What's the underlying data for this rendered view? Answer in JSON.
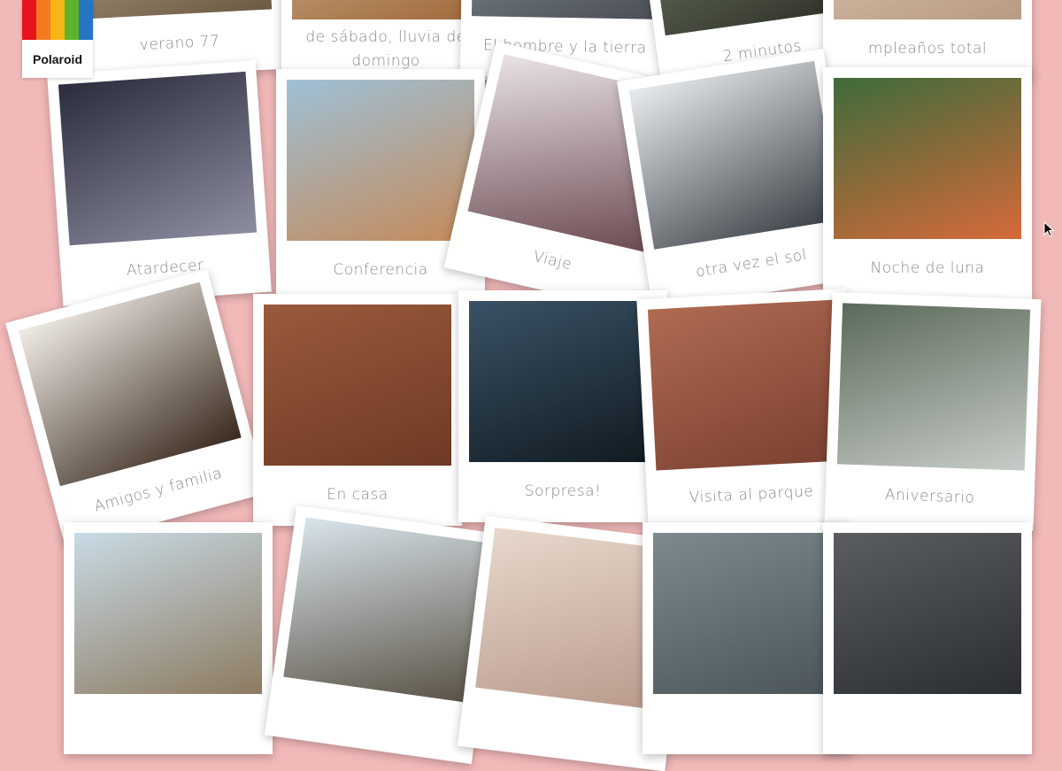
{
  "logo": {
    "label": "Polaroid"
  },
  "rows": [
    {
      "captions": [
        "verano 77",
        "de sábado, lluvia de domingo",
        "El hombre y la tierra",
        "2 minutos",
        "mpleaños total"
      ]
    },
    {
      "captions": [
        "Atardecer",
        "Conferencia",
        "Viaje",
        "otra vez el sol",
        "Noche de luna"
      ]
    },
    {
      "captions": [
        "Amigos y familia",
        "En casa",
        "Sorpresa!",
        "Visita al parque",
        "Aniversario"
      ]
    }
  ]
}
